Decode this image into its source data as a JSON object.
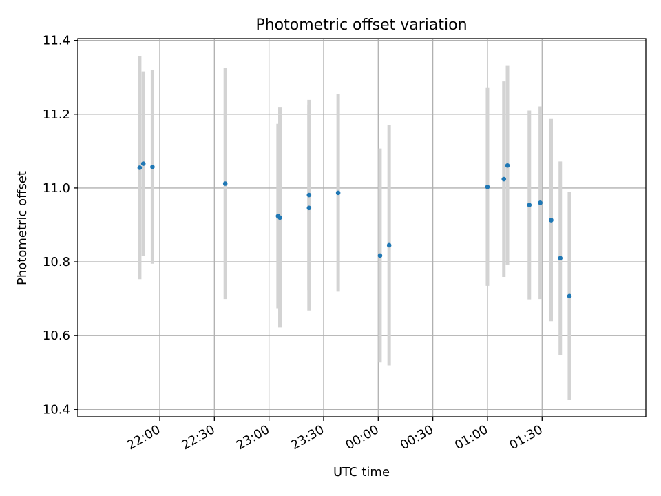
{
  "chart_data": {
    "type": "scatter",
    "title": "Photometric offset variation",
    "xlabel": "UTC time",
    "ylabel": "Photometric offset",
    "x_axis_kind": "time",
    "xlim": [
      "21:15",
      "02:27"
    ],
    "ylim": [
      10.38,
      11.405
    ],
    "x_ticks": [
      "22:00",
      "22:30",
      "23:00",
      "23:30",
      "00:00",
      "00:30",
      "01:00",
      "01:30"
    ],
    "y_ticks": [
      10.4,
      10.6,
      10.8,
      11.0,
      11.2,
      11.4
    ],
    "y_tick_labels": [
      "10.4",
      "10.6",
      "10.8",
      "11.0",
      "11.2",
      "11.4"
    ],
    "grid": true,
    "marker_color": "#1f77b4",
    "errorbar_color": "#d3d3d3",
    "series": [
      {
        "points": [
          {
            "x": "21:49",
            "y": 11.055,
            "yerr": 0.302
          },
          {
            "x": "21:51",
            "y": 11.066,
            "yerr": 0.25
          },
          {
            "x": "21:56",
            "y": 11.057,
            "yerr": 0.262
          },
          {
            "x": "22:36",
            "y": 11.012,
            "yerr": 0.313
          },
          {
            "x": "23:05",
            "y": 10.924,
            "yerr": 0.25
          },
          {
            "x": "23:06",
            "y": 10.92,
            "yerr": 0.298
          },
          {
            "x": "23:22",
            "y": 10.981,
            "yerr": 0.258
          },
          {
            "x": "23:22",
            "y": 10.946,
            "yerr": 0.278
          },
          {
            "x": "23:38",
            "y": 10.987,
            "yerr": 0.268
          },
          {
            "x": "00:01",
            "y": 10.817,
            "yerr": 0.29
          },
          {
            "x": "00:06",
            "y": 10.845,
            "yerr": 0.326
          },
          {
            "x": "01:00",
            "y": 11.003,
            "yerr": 0.268
          },
          {
            "x": "01:09",
            "y": 11.024,
            "yerr": 0.265
          },
          {
            "x": "01:11",
            "y": 11.061,
            "yerr": 0.27
          },
          {
            "x": "01:23",
            "y": 10.954,
            "yerr": 0.256
          },
          {
            "x": "01:29",
            "y": 10.96,
            "yerr": 0.261
          },
          {
            "x": "01:35",
            "y": 10.913,
            "yerr": 0.274
          },
          {
            "x": "01:40",
            "y": 10.81,
            "yerr": 0.262
          },
          {
            "x": "01:45",
            "y": 10.707,
            "yerr": 0.282
          }
        ]
      }
    ]
  }
}
